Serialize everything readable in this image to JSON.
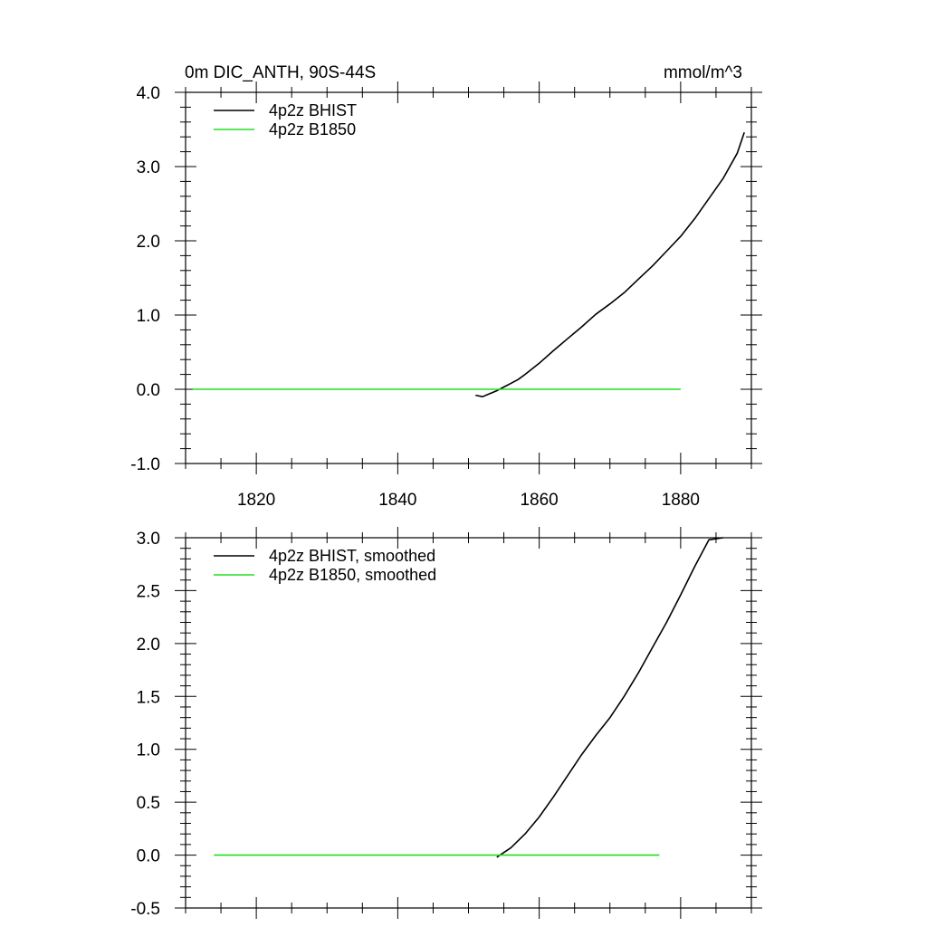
{
  "chart_data": [
    {
      "type": "line",
      "title_left": "0m DIC_ANTH, 90S-44S",
      "title_right": "mmol/m^3",
      "xlim": [
        1810,
        1890
      ],
      "ylim": [
        -1.0,
        4.0
      ],
      "x_ticks": [
        1820,
        1840,
        1860,
        1880
      ],
      "y_ticks": [
        -1.0,
        0.0,
        1.0,
        2.0,
        3.0,
        4.0
      ],
      "y_tick_labels": [
        "-1.0",
        "0.0",
        "1.0",
        "2.0",
        "3.0",
        "4.0"
      ],
      "x_tick_labels_shown": true,
      "legend_position": "top-left",
      "series": [
        {
          "name": "4p2z BHIST",
          "color": "#000000",
          "x": [
            1851,
            1852,
            1853,
            1854,
            1855,
            1856,
            1857,
            1858,
            1860,
            1862,
            1864,
            1866,
            1868,
            1870,
            1872,
            1874,
            1876,
            1878,
            1880,
            1882,
            1884,
            1886,
            1888,
            1889
          ],
          "y": [
            -0.08,
            -0.1,
            -0.06,
            -0.02,
            0.03,
            0.08,
            0.13,
            0.2,
            0.35,
            0.52,
            0.68,
            0.84,
            1.01,
            1.15,
            1.3,
            1.48,
            1.66,
            1.86,
            2.06,
            2.3,
            2.57,
            2.84,
            3.18,
            3.46
          ]
        },
        {
          "name": "4p2z B1850",
          "color": "#22dd22",
          "x": [
            1811,
            1880
          ],
          "y": [
            0.0,
            0.0
          ]
        }
      ]
    },
    {
      "type": "line",
      "xlim": [
        1810,
        1890
      ],
      "ylim": [
        -0.5,
        3.0
      ],
      "x_ticks": [
        1820,
        1840,
        1860,
        1880
      ],
      "y_ticks": [
        -0.5,
        0.0,
        0.5,
        1.0,
        1.5,
        2.0,
        2.5,
        3.0
      ],
      "y_tick_labels": [
        "-0.5",
        "0.0",
        "0.5",
        "1.0",
        "1.5",
        "2.0",
        "2.5",
        "3.0"
      ],
      "x_tick_labels_shown": false,
      "legend_position": "top-left",
      "series": [
        {
          "name": "4p2z BHIST, smoothed",
          "color": "#000000",
          "x": [
            1854,
            1856,
            1858,
            1860,
            1862,
            1864,
            1866,
            1868,
            1870,
            1872,
            1874,
            1876,
            1878,
            1880,
            1882,
            1884,
            1886
          ],
          "y": [
            -0.02,
            0.07,
            0.2,
            0.36,
            0.55,
            0.75,
            0.95,
            1.13,
            1.3,
            1.5,
            1.72,
            1.96,
            2.2,
            2.46,
            2.73,
            2.98,
            3.0
          ]
        },
        {
          "name": "4p2z B1850, smoothed",
          "color": "#22dd22",
          "x": [
            1814,
            1877
          ],
          "y": [
            0.0,
            0.0
          ]
        }
      ]
    }
  ]
}
